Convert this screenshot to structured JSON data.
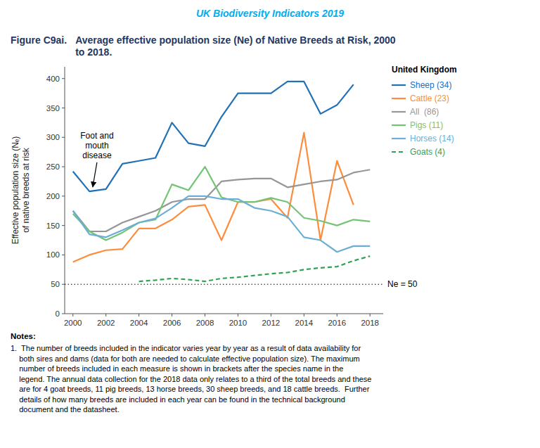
{
  "chart_data": {
    "type": "line",
    "subtitle": "UK Biodiversity Indicators 2019",
    "figure_label": "Figure C9ai.",
    "title": "Average effective population size (Ne) of Native Breeds at Risk, 2000\nto 2018.",
    "y_label": "Effective population size (Nₑ)\nof native breeds at risk",
    "x": [
      2000,
      2001,
      2002,
      2003,
      2004,
      2005,
      2006,
      2007,
      2008,
      2009,
      2010,
      2011,
      2012,
      2013,
      2014,
      2015,
      2016,
      2017,
      2018
    ],
    "series": [
      {
        "name": "Sheep (34)",
        "color": "#2171b5",
        "line_style": "solid",
        "values": [
          242,
          208,
          212,
          255,
          260,
          265,
          325,
          290,
          285,
          335,
          375,
          375,
          375,
          395,
          395,
          340,
          355,
          390,
          null
        ]
      },
      {
        "name": "Cattle (23)",
        "color": "#fd8d3c",
        "line_style": "solid",
        "values": [
          88,
          100,
          108,
          110,
          145,
          145,
          160,
          182,
          185,
          125,
          190,
          190,
          195,
          163,
          308,
          125,
          260,
          185,
          null
        ]
      },
      {
        "name": "All  (86)",
        "color": "#969696",
        "line_style": "solid",
        "values": [
          175,
          140,
          140,
          155,
          165,
          175,
          190,
          195,
          195,
          225,
          228,
          230,
          230,
          215,
          220,
          225,
          228,
          240,
          245
        ]
      },
      {
        "name": "Pigs (11)",
        "color": "#74c476",
        "line_style": "solid",
        "values": [
          170,
          140,
          125,
          138,
          155,
          160,
          220,
          210,
          250,
          198,
          190,
          190,
          197,
          190,
          163,
          158,
          150,
          160,
          157
        ]
      },
      {
        "name": "Horses (14)",
        "color": "#6baed6",
        "line_style": "solid",
        "values": [
          175,
          135,
          130,
          142,
          155,
          162,
          180,
          200,
          200,
          195,
          195,
          180,
          175,
          165,
          130,
          125,
          105,
          115,
          115
        ]
      },
      {
        "name": "Goats (4)",
        "color": "#31a354",
        "line_style": "dashed",
        "values": [
          null,
          null,
          null,
          null,
          55,
          57,
          60,
          58,
          55,
          60,
          62,
          65,
          68,
          70,
          75,
          78,
          80,
          90,
          98
        ]
      }
    ],
    "hlines": [
      {
        "value": 50,
        "label": "Ne = 50",
        "line_style": "dotted"
      }
    ],
    "annotations": [
      {
        "text": "Foot and\nmouth\ndisease",
        "x": 2001.2,
        "y": 212
      }
    ],
    "legend": "right",
    "legend_title": "United Kingdom",
    "grid": false,
    "xlim": [
      1999.5,
      2018.8
    ],
    "xticks": [
      2000,
      2002,
      2004,
      2006,
      2008,
      2010,
      2012,
      2014,
      2016,
      2018
    ],
    "ylim": [
      0,
      420
    ],
    "yticks": [
      0,
      50,
      100,
      150,
      200,
      250,
      300,
      350,
      400
    ],
    "notes_title": "Notes:",
    "notes": "1.  The number of breeds included in the indicator varies year by year as a result of data availability for\n    both sires and dams (data for both are needed to calculate effective population size). The maximum\n    number of breeds included in each measure is shown in brackets after the species name in the\n    legend. The annual data collection for the 2018 data only relates to a third of the total breeds and these\n    are for 4 goat breeds, 11 pig breeds, 13 horse breeds, 30 sheep breeds, and 18 cattle breeds.  Further\n    details of how many breeds are included in each year can be found in the technical background\n    document and the datasheet."
  }
}
